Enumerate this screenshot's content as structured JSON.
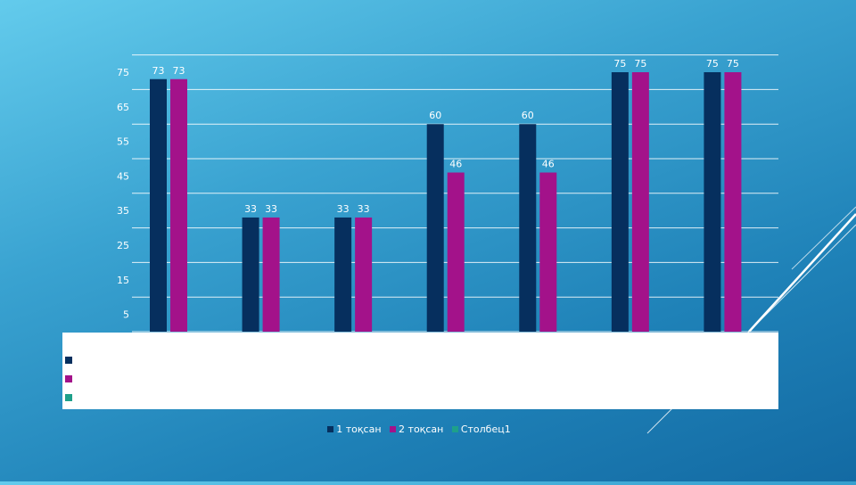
{
  "colors": {
    "series1": "#062f5e",
    "series2": "#a3128a",
    "series3": "#1ea08a",
    "gridline": "#ffffff",
    "text": "#ffffff"
  },
  "chart_data": {
    "type": "bar",
    "title": "",
    "xlabel": "",
    "ylabel": "",
    "categories": [
      "",
      "",
      "",
      "",
      "",
      "",
      ""
    ],
    "yticks": [
      5,
      15,
      25,
      35,
      45,
      55,
      65,
      75
    ],
    "ylim": [
      0,
      80
    ],
    "grid": true,
    "legend_position": "bottom",
    "series": [
      {
        "name": "1 тоқсан",
        "values": [
          73,
          33,
          33,
          60,
          60,
          75,
          75
        ]
      },
      {
        "name": "2 тоқсан",
        "values": [
          73,
          33,
          33,
          46,
          46,
          75,
          75
        ]
      },
      {
        "name": "Столбец1",
        "values": [
          null,
          null,
          null,
          null,
          null,
          null,
          null
        ]
      }
    ],
    "data_table_shown": true
  },
  "legend": {
    "items": [
      {
        "label": "1 тоқсан"
      },
      {
        "label": "2 тоқсан"
      },
      {
        "label": "Столбец1"
      }
    ]
  }
}
